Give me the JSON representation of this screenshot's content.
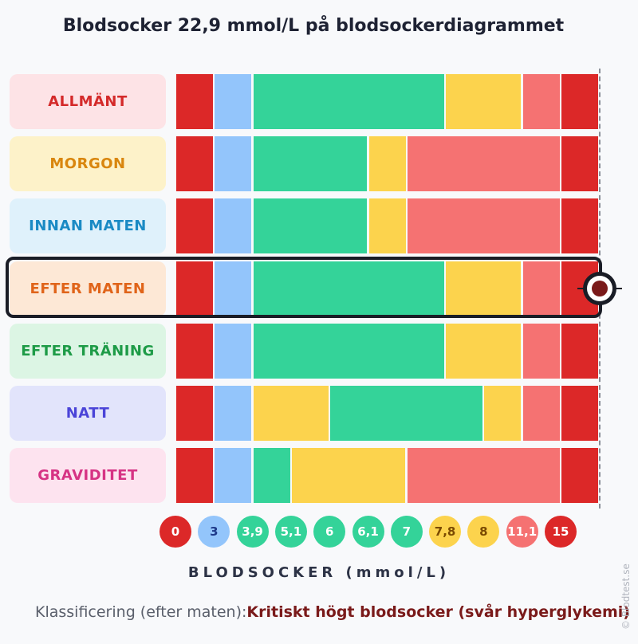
{
  "title": "Blodsocker 22,9 mmol/L på blodsockerdiagrammet",
  "chart_data": {
    "type": "bar",
    "title": "Blodsocker 22,9 mmol/L på blodsockerdiagrammet",
    "xlabel": "BLODSOCKER (mmol/L)",
    "tick_labels": [
      "0",
      "3",
      "3,9",
      "5,1",
      "6",
      "6,1",
      "7",
      "7,8",
      "8",
      "11,1",
      "15"
    ],
    "highlighted_row": "EFTER MATEN",
    "marker_value": 22.9,
    "rows": [
      {
        "label": "ALLMÄNT",
        "text_color": "#d42a2a",
        "bg": "#fde3e6",
        "segments": [
          "red",
          "blue",
          "green",
          "green",
          "green",
          "green",
          "green",
          "yellow",
          "yellow",
          "salmon",
          "red"
        ]
      },
      {
        "label": "MORGON",
        "text_color": "#d9860e",
        "bg": "#fdf2c9",
        "segments": [
          "red",
          "blue",
          "green",
          "green",
          "green",
          "yellow",
          "salmon",
          "salmon",
          "salmon",
          "salmon",
          "red"
        ]
      },
      {
        "label": "INNAN MATEN",
        "text_color": "#1a8ac4",
        "bg": "#dff1fb",
        "segments": [
          "red",
          "blue",
          "green",
          "green",
          "green",
          "yellow",
          "salmon",
          "salmon",
          "salmon",
          "salmon",
          "red"
        ]
      },
      {
        "label": "EFTER MATEN",
        "text_color": "#e0641a",
        "bg": "#fde8d6",
        "segments": [
          "red",
          "blue",
          "green",
          "green",
          "green",
          "green",
          "green",
          "yellow",
          "yellow",
          "salmon",
          "red"
        ]
      },
      {
        "label": "EFTER TRÄNING",
        "text_color": "#1e9b47",
        "bg": "#dcf5e4",
        "segments": [
          "red",
          "blue",
          "green",
          "green",
          "green",
          "green",
          "green",
          "yellow",
          "yellow",
          "salmon",
          "red"
        ]
      },
      {
        "label": "NATT",
        "text_color": "#4b44d8",
        "bg": "#e2e4fb",
        "segments": [
          "red",
          "blue",
          "yellow",
          "yellow",
          "green",
          "green",
          "green",
          "green",
          "yellow",
          "salmon",
          "red"
        ]
      },
      {
        "label": "GRAVIDITET",
        "text_color": "#d63384",
        "bg": "#fde3ef",
        "segments": [
          "red",
          "blue",
          "green",
          "yellow",
          "yellow",
          "yellow",
          "salmon",
          "salmon",
          "salmon",
          "salmon",
          "red"
        ]
      }
    ]
  },
  "colors": {
    "red": "#dc2828",
    "blue": "#93c5fb",
    "green": "#34d399",
    "yellow": "#fcd34d",
    "salmon": "#f57272"
  },
  "tick_styles": [
    {
      "bg": "#dc2828",
      "fg": "#ffffff"
    },
    {
      "bg": "#93c5fb",
      "fg": "#1e3a8a"
    },
    {
      "bg": "#34d399",
      "fg": "#ffffff"
    },
    {
      "bg": "#34d399",
      "fg": "#ffffff"
    },
    {
      "bg": "#34d399",
      "fg": "#ffffff"
    },
    {
      "bg": "#34d399",
      "fg": "#ffffff"
    },
    {
      "bg": "#34d399",
      "fg": "#ffffff"
    },
    {
      "bg": "#fcd34d",
      "fg": "#7a4a00"
    },
    {
      "bg": "#fcd34d",
      "fg": "#7a4a00"
    },
    {
      "bg": "#f57272",
      "fg": "#ffffff"
    },
    {
      "bg": "#dc2828",
      "fg": "#ffffff"
    }
  ],
  "footer": {
    "prefix": "Klassificering (efter maten):",
    "classification": "Kritiskt högt blodsocker (svår hyperglykemi)"
  },
  "credit": "© Blodtest.se"
}
